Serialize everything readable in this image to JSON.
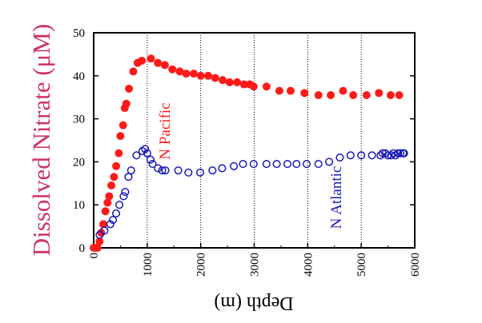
{
  "colors": {
    "pacific": "#ff1a1a",
    "atlantic": "#1a1ab3",
    "ylabel": "#cc3366",
    "axis": "#000000",
    "grid": "#000000"
  },
  "chart_data": {
    "type": "scatter",
    "title": "",
    "xlabel": "Depth (m)",
    "ylabel": "Dissolved Nitrate (μM)",
    "xlim": [
      0,
      6000
    ],
    "ylim": [
      0,
      50
    ],
    "x_ticks": [
      "0",
      "1000",
      "2000",
      "3000",
      "4000",
      "5000",
      "6000"
    ],
    "y_ticks": [
      "0",
      "10",
      "20",
      "30",
      "40",
      "50"
    ],
    "grid": "vertical dotted lines at 1000-5000",
    "series": [
      {
        "name": "N Pacific",
        "marker": "filled-circle",
        "color": "#ff1a1a",
        "points": [
          [
            0,
            0
          ],
          [
            40,
            0
          ],
          [
            70,
            0
          ],
          [
            110,
            1.5
          ],
          [
            140,
            3.5
          ],
          [
            180,
            5.5
          ],
          [
            220,
            8.5
          ],
          [
            260,
            10.5
          ],
          [
            290,
            12
          ],
          [
            330,
            14.5
          ],
          [
            380,
            16.5
          ],
          [
            420,
            19
          ],
          [
            470,
            22
          ],
          [
            500,
            26
          ],
          [
            550,
            28.5
          ],
          [
            580,
            32.5
          ],
          [
            610,
            33.5
          ],
          [
            660,
            37
          ],
          [
            740,
            41
          ],
          [
            820,
            43
          ],
          [
            900,
            43.5
          ],
          [
            1070,
            44
          ],
          [
            1200,
            43
          ],
          [
            1330,
            42.5
          ],
          [
            1470,
            41.5
          ],
          [
            1610,
            41
          ],
          [
            1730,
            40.5
          ],
          [
            1870,
            40.5
          ],
          [
            2000,
            40
          ],
          [
            2140,
            40
          ],
          [
            2270,
            39.5
          ],
          [
            2410,
            39
          ],
          [
            2540,
            38.5
          ],
          [
            2680,
            38.5
          ],
          [
            2810,
            38
          ],
          [
            2920,
            38
          ],
          [
            2990,
            37.5
          ],
          [
            3230,
            37.5
          ],
          [
            3470,
            36.5
          ],
          [
            3680,
            36.5
          ],
          [
            3940,
            36
          ],
          [
            4200,
            35.5
          ],
          [
            4430,
            35.5
          ],
          [
            4660,
            36.5
          ],
          [
            4850,
            35.5
          ],
          [
            5100,
            35.5
          ],
          [
            5330,
            36
          ],
          [
            5550,
            35.5
          ],
          [
            5710,
            35.5
          ]
        ]
      },
      {
        "name": "N Atlantic",
        "marker": "open-circle",
        "color": "#1a1ab3",
        "points": [
          [
            110,
            3
          ],
          [
            200,
            4
          ],
          [
            310,
            5.5
          ],
          [
            360,
            6.5
          ],
          [
            420,
            8
          ],
          [
            480,
            10
          ],
          [
            560,
            12
          ],
          [
            590,
            13
          ],
          [
            650,
            16.5
          ],
          [
            700,
            18
          ],
          [
            800,
            21.5
          ],
          [
            910,
            22.5
          ],
          [
            960,
            23
          ],
          [
            1000,
            22
          ],
          [
            1060,
            20.5
          ],
          [
            1100,
            19.5
          ],
          [
            1200,
            18.5
          ],
          [
            1280,
            18
          ],
          [
            1340,
            18
          ],
          [
            1580,
            18
          ],
          [
            1770,
            17.5
          ],
          [
            1990,
            17.5
          ],
          [
            2220,
            18
          ],
          [
            2400,
            18.5
          ],
          [
            2620,
            19
          ],
          [
            2790,
            19.5
          ],
          [
            2990,
            19.5
          ],
          [
            3230,
            19.5
          ],
          [
            3420,
            19.5
          ],
          [
            3620,
            19.5
          ],
          [
            3790,
            19.5
          ],
          [
            3980,
            19.5
          ],
          [
            4200,
            19.5
          ],
          [
            4400,
            20
          ],
          [
            4600,
            21
          ],
          [
            4800,
            21.5
          ],
          [
            5000,
            21.5
          ],
          [
            5200,
            21.5
          ],
          [
            5360,
            21.5
          ],
          [
            5400,
            22
          ],
          [
            5450,
            22
          ],
          [
            5500,
            21.5
          ],
          [
            5560,
            21.5
          ],
          [
            5600,
            22
          ],
          [
            5640,
            21.5
          ],
          [
            5690,
            22
          ],
          [
            5730,
            22
          ],
          [
            5780,
            22
          ],
          [
            5800,
            22
          ]
        ]
      }
    ],
    "annotations": [
      {
        "text": "N Pacific",
        "series": "N Pacific"
      },
      {
        "text": "N Atlantic",
        "series": "N Atlantic"
      }
    ]
  }
}
